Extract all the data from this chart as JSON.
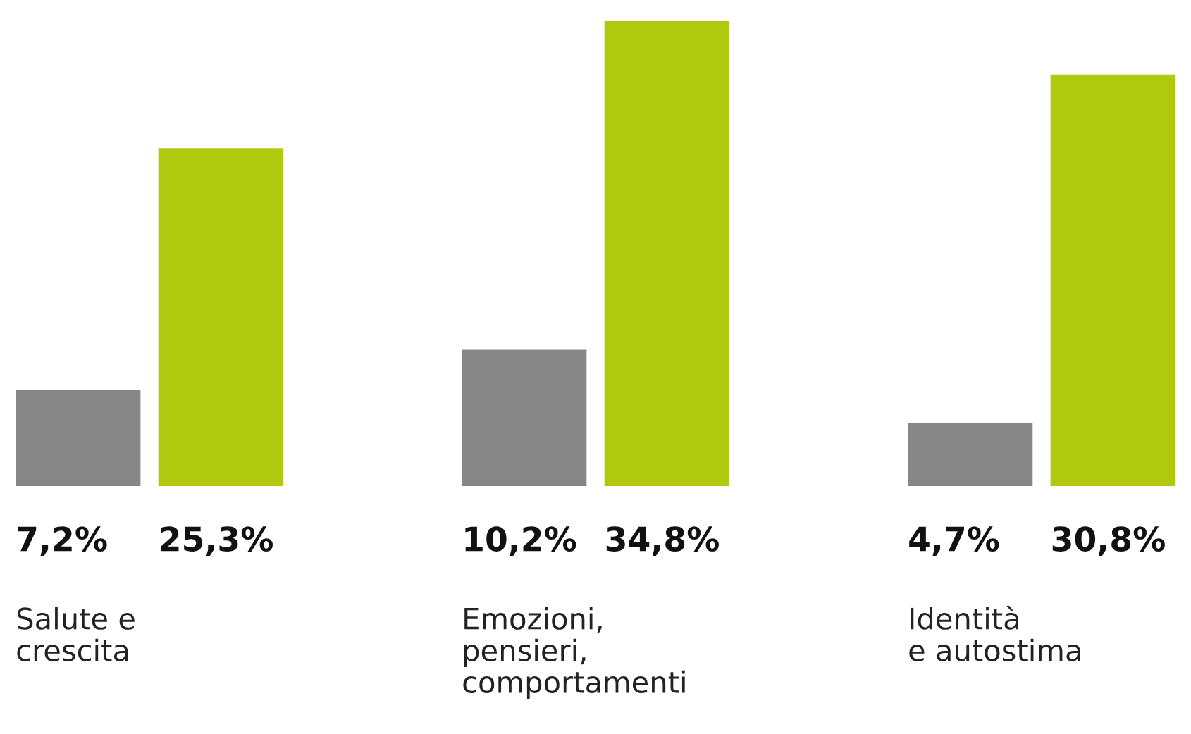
{
  "chart_data": {
    "type": "bar",
    "categories": [
      "Salute e\ncrescita",
      "Emozioni,\npensieri,\ncomportamenti",
      "Identità\ne autostima"
    ],
    "series": [
      {
        "color": "#878787",
        "values": [
          7.2,
          10.2,
          4.7
        ],
        "value_labels": [
          "7,2%",
          "10,2%",
          "4,7%"
        ]
      },
      {
        "color": "#b0c90f",
        "values": [
          25.3,
          34.8,
          30.8
        ],
        "value_labels": [
          "25,3%",
          "34,8%",
          "30,8%"
        ]
      }
    ]
  }
}
